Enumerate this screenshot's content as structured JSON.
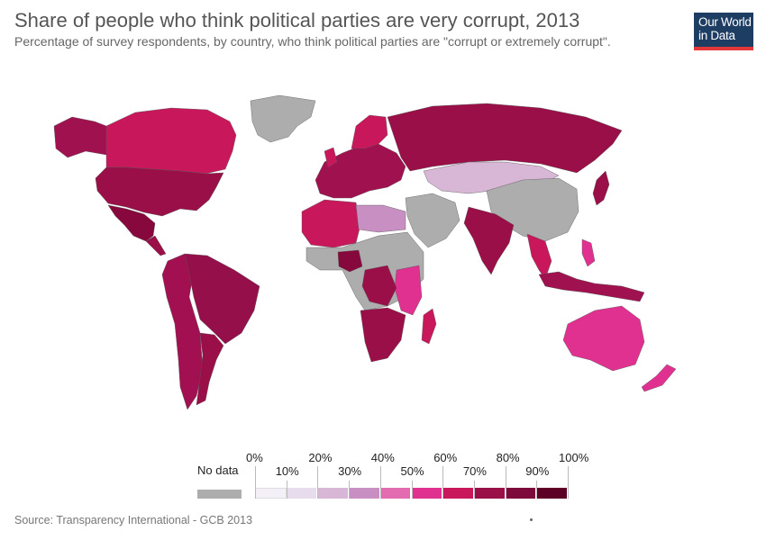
{
  "header": {
    "title": "Share of people who think political parties are very corrupt, 2013",
    "subtitle": "Percentage of survey respondents, by country, who think political parties are \"corrupt or extremely corrupt\"."
  },
  "logo": {
    "line1": "Our World",
    "line2": "in Data",
    "bg": "#1d3d63",
    "accent": "#e5373a"
  },
  "map": {
    "land_nodata_color": "#adadad",
    "ocean_color": "#ffffff",
    "country_fills": {
      "Canada": "#c8185b",
      "USA": "#9b0f48",
      "Mexico": "#86083c",
      "Greenland": "#adadad",
      "Alaska": "#a01150",
      "Brazil": "#95104a",
      "SouthAmerica_West": "#a21052",
      "Argentina": "#9b0f48",
      "Russia": "#9b0f48",
      "Europe": "#a01150",
      "Kazakhstan_Mongolia": "#d7b6d6",
      "China": "#adadad",
      "India": "#9b0f48",
      "SoutheastAsia": "#c8185b",
      "Indonesia": "#a01150",
      "Australia": "#e03191",
      "NewZealand": "#e03191",
      "Africa_North": "#c8185b",
      "Egypt_Libya": "#c88fc3",
      "Africa_Central": "#adadad",
      "Africa_East": "#e03191",
      "SouthAfrica": "#9b0f48",
      "Madagascar": "#c8185b",
      "MiddleEast": "#adadad"
    }
  },
  "legend": {
    "no_data_label": "No data",
    "no_data_color": "#adadad",
    "top_labels": [
      "0%",
      "20%",
      "40%",
      "60%",
      "80%",
      "100%"
    ],
    "bottom_labels": [
      "10%",
      "30%",
      "50%",
      "70%",
      "90%"
    ],
    "bin_colors": [
      "#f5f0f7",
      "#e6dcee",
      "#d7b6d6",
      "#c88fc3",
      "#e36bb0",
      "#e03191",
      "#c8185b",
      "#9b0f48",
      "#7d0a3a",
      "#5c0025"
    ]
  },
  "footer": {
    "source": "Source: Transparency International - GCB 2013"
  }
}
